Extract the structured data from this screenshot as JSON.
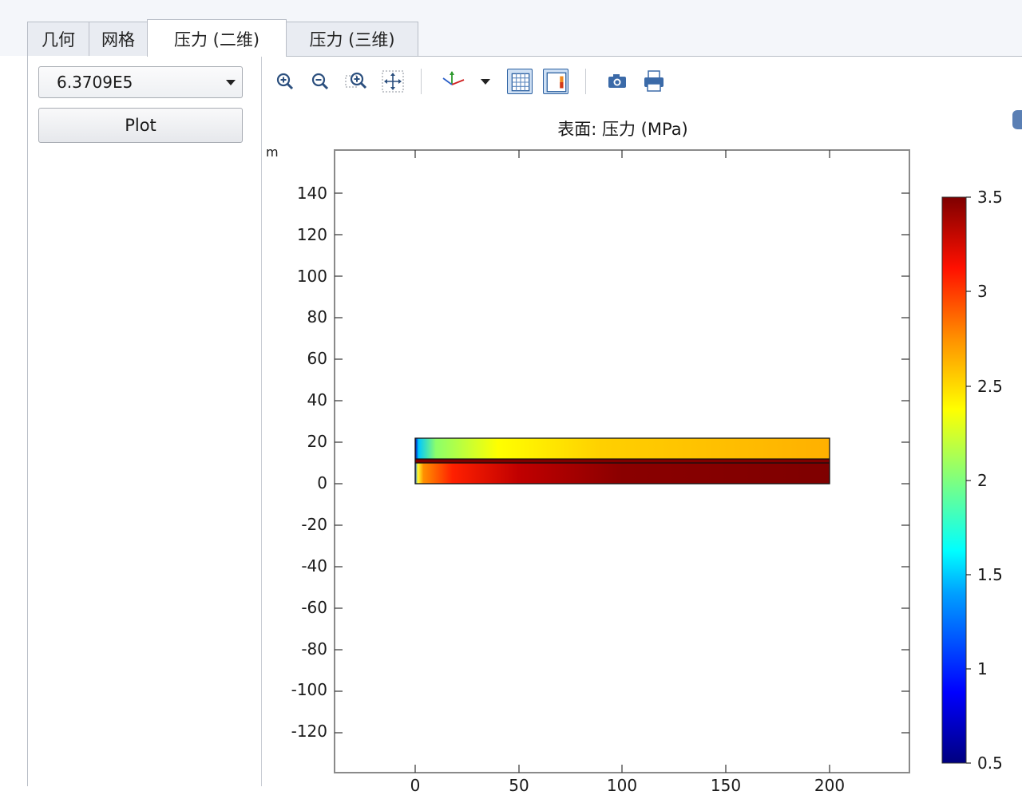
{
  "tabs": [
    {
      "label": "几何",
      "active": false
    },
    {
      "label": "网格",
      "active": false
    },
    {
      "label": "压力 (二维)",
      "active": true
    },
    {
      "label": "压力 (三维)",
      "active": false
    }
  ],
  "controls": {
    "selected_value": "6.3709E5",
    "plot_button": "Plot"
  },
  "toolbar": {
    "icons": [
      "zoom-in-icon",
      "zoom-out-icon",
      "zoom-box-icon",
      "zoom-extents-icon",
      "axis-orientation-icon",
      "dropdown-icon",
      "grid-toggle-icon",
      "legend-toggle-icon",
      "camera-icon",
      "print-icon"
    ]
  },
  "plot": {
    "title": "表面: 压力 (MPa)",
    "y_unit": "m",
    "y_ticks": [
      "140",
      "120",
      "100",
      "80",
      "60",
      "40",
      "20",
      "0",
      "-20",
      "-40",
      "-60",
      "-80",
      "-100",
      "-120"
    ],
    "x_ticks": [
      "0",
      "50",
      "100",
      "150",
      "200"
    ],
    "colorbar_ticks": [
      "3.5",
      "3",
      "2.5",
      "2",
      "1.5",
      "1",
      "0.5"
    ],
    "colorbar_range": [
      0.5,
      3.5
    ],
    "colormap": [
      "#00007f",
      "#0000ff",
      "#00a0ff",
      "#00ffff",
      "#7fff7f",
      "#ffff00",
      "#ff9000",
      "#ff2000",
      "#7f0000"
    ]
  },
  "chart_data": {
    "type": "heatmap",
    "title": "表面: 压力 (MPa)",
    "ylabel": "m",
    "xlim": [
      -39,
      238
    ],
    "ylim": [
      -139,
      161
    ],
    "x_ticks": [
      0,
      50,
      100,
      150,
      200
    ],
    "y_ticks": [
      140,
      120,
      100,
      80,
      60,
      40,
      20,
      0,
      -20,
      -40,
      -60,
      -80,
      -100,
      -120
    ],
    "colorbar": {
      "min": 0.5,
      "max": 3.5,
      "ticks": [
        3.5,
        3,
        2.5,
        2,
        1.5,
        1,
        0.5
      ]
    },
    "regions": [
      {
        "x": [
          0,
          200
        ],
        "y": [
          12,
          22
        ],
        "value_at_left": 1.2,
        "value_at_right": 2.8
      },
      {
        "x": [
          0,
          200
        ],
        "y": [
          10,
          12
        ],
        "value_at_left": 3.5,
        "value_at_right": 3.5
      },
      {
        "x": [
          0,
          200
        ],
        "y": [
          0,
          10
        ],
        "value_at_left": 2.4,
        "value_at_right": 3.5
      }
    ]
  }
}
